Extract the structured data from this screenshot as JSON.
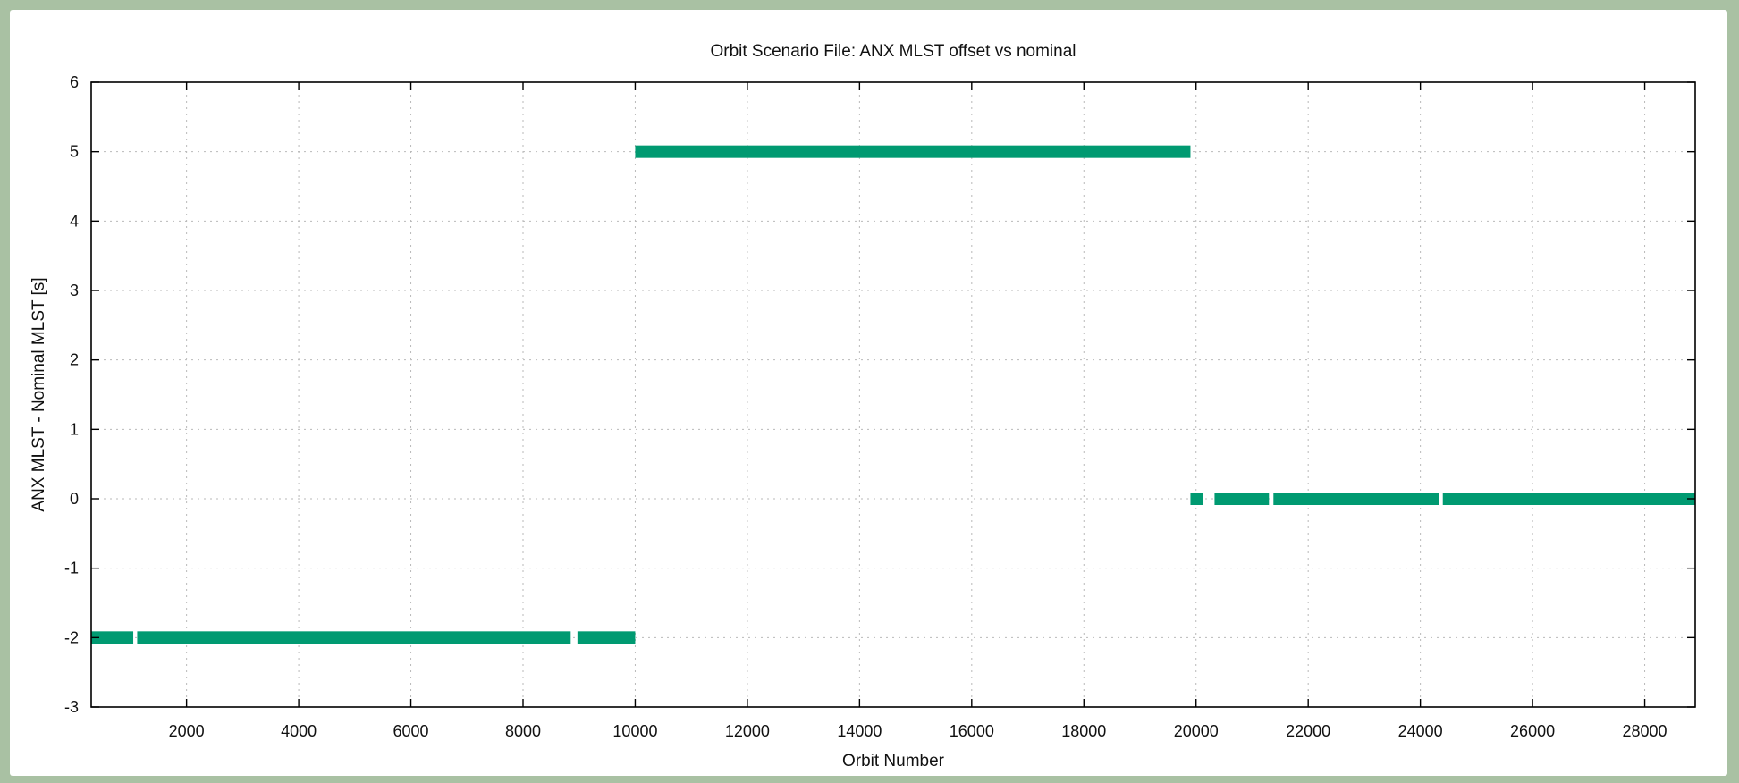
{
  "chart_data": {
    "type": "line",
    "title": "Orbit Scenario File: ANX MLST offset vs nominal",
    "xlabel": "Orbit Number",
    "ylabel": "ANX MLST - Nominal MLST [s]",
    "xlim": [
      300,
      28900
    ],
    "ylim": [
      -3,
      6
    ],
    "xticks": [
      2000,
      4000,
      6000,
      8000,
      10000,
      12000,
      14000,
      16000,
      18000,
      20000,
      22000,
      24000,
      26000,
      28000
    ],
    "yticks": [
      -3,
      -2,
      -1,
      0,
      1,
      2,
      3,
      4,
      5,
      6
    ],
    "grid": true,
    "legend": "none",
    "series": [
      {
        "color": "#009a71",
        "segments": [
          {
            "x": [
              300,
              1050
            ],
            "y": -2
          },
          {
            "x": [
              1120,
              8850
            ],
            "y": -2
          },
          {
            "x": [
              8970,
              10000
            ],
            "y": -2
          },
          {
            "x": [
              10000,
              19900
            ],
            "y": 5
          },
          {
            "x": [
              19900,
              20120
            ],
            "y": 0
          },
          {
            "x": [
              20330,
              21300
            ],
            "y": 0
          },
          {
            "x": [
              21380,
              24330
            ],
            "y": 0
          },
          {
            "x": [
              24400,
              28900
            ],
            "y": 0
          }
        ]
      }
    ]
  }
}
